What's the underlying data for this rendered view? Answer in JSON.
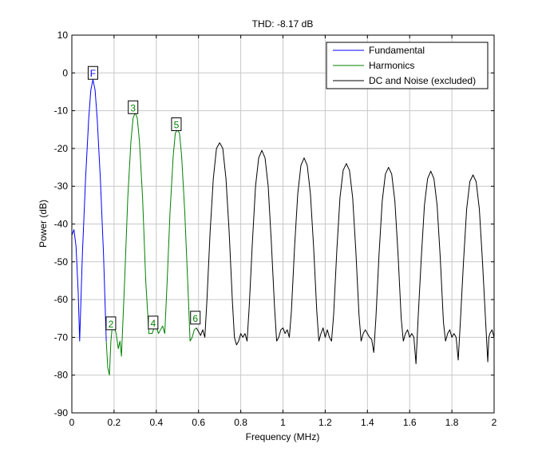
{
  "chart_data": {
    "type": "line",
    "title": "THD:  -8.17 dB",
    "xlabel": "Frequency (MHz)",
    "ylabel": "Power (dB)",
    "xlim": [
      0,
      2
    ],
    "ylim": [
      -90,
      10
    ],
    "x_ticks": [
      "0",
      "0.2",
      "0.4",
      "0.6",
      "0.8",
      "1",
      "1.2",
      "1.4",
      "1.6",
      "1.8",
      "2"
    ],
    "y_ticks": [
      "10",
      "0",
      "-10",
      "-20",
      "-30",
      "-40",
      "-50",
      "-60",
      "-70",
      "-80",
      "-90"
    ],
    "grid": true,
    "legend": {
      "position": "top-right",
      "entries": [
        {
          "name": "Fundamental",
          "color": "#0000ff"
        },
        {
          "name": "Harmonics",
          "color": "#008000"
        },
        {
          "name": "DC and Noise (excluded)",
          "color": "#000000"
        }
      ]
    },
    "series": [
      {
        "name": "Fundamental",
        "color": "#0000ff",
        "points": [
          [
            0.0,
            -43.0
          ],
          [
            0.01,
            -41.5
          ],
          [
            0.02,
            -46.0
          ],
          [
            0.03,
            -58.0
          ],
          [
            0.037,
            -71.0
          ],
          [
            0.05,
            -48.0
          ],
          [
            0.065,
            -28.0
          ],
          [
            0.08,
            -12.0
          ],
          [
            0.09,
            -4.5
          ],
          [
            0.1,
            -1.8
          ],
          [
            0.11,
            -4.5
          ],
          [
            0.12,
            -12.0
          ],
          [
            0.135,
            -28.0
          ],
          [
            0.15,
            -48.0
          ],
          [
            0.163,
            -71.0
          ]
        ]
      },
      {
        "name": "Harmonics",
        "color": "#008000",
        "points": [
          [
            0.163,
            -71.0
          ],
          [
            0.17,
            -78.0
          ],
          [
            0.178,
            -80.0
          ],
          [
            0.185,
            -71.0
          ],
          [
            0.19,
            -68.0
          ],
          [
            0.2,
            -67.0
          ],
          [
            0.21,
            -69.0
          ],
          [
            0.22,
            -73.0
          ],
          [
            0.228,
            -71.0
          ],
          [
            0.235,
            -75.0
          ],
          [
            0.25,
            -55.0
          ],
          [
            0.265,
            -33.0
          ],
          [
            0.28,
            -18.0
          ],
          [
            0.29,
            -12.0
          ],
          [
            0.3,
            -10.5
          ],
          [
            0.31,
            -12.0
          ],
          [
            0.32,
            -18.0
          ],
          [
            0.335,
            -33.0
          ],
          [
            0.35,
            -55.0
          ],
          [
            0.365,
            -69.0
          ],
          [
            0.38,
            -69.0
          ],
          [
            0.39,
            -67.5
          ],
          [
            0.4,
            -67.0
          ],
          [
            0.41,
            -69.0
          ],
          [
            0.42,
            -68.0
          ],
          [
            0.43,
            -67.0
          ],
          [
            0.44,
            -69.0
          ],
          [
            0.45,
            -57.0
          ],
          [
            0.465,
            -37.0
          ],
          [
            0.48,
            -22.0
          ],
          [
            0.49,
            -16.0
          ],
          [
            0.5,
            -15.0
          ],
          [
            0.51,
            -16.0
          ],
          [
            0.52,
            -22.0
          ],
          [
            0.535,
            -37.0
          ],
          [
            0.55,
            -57.0
          ],
          [
            0.56,
            -71.0
          ],
          [
            0.57,
            -70.0
          ],
          [
            0.58,
            -68.0
          ],
          [
            0.59,
            -67.5
          ]
        ]
      },
      {
        "name": "DC and Noise (excluded)",
        "color": "#000000",
        "points": [
          [
            0.59,
            -67.5
          ],
          [
            0.6,
            -68.5
          ],
          [
            0.61,
            -69.5
          ],
          [
            0.62,
            -68.0
          ],
          [
            0.63,
            -70.0
          ],
          [
            0.64,
            -60.0
          ],
          [
            0.655,
            -42.0
          ],
          [
            0.67,
            -28.0
          ],
          [
            0.685,
            -20.0
          ],
          [
            0.7,
            -18.5
          ],
          [
            0.715,
            -20.0
          ],
          [
            0.73,
            -28.0
          ],
          [
            0.745,
            -42.0
          ],
          [
            0.76,
            -60.0
          ],
          [
            0.77,
            -70.0
          ],
          [
            0.78,
            -72.0
          ],
          [
            0.79,
            -71.0
          ],
          [
            0.8,
            -69.0
          ],
          [
            0.81,
            -70.0
          ],
          [
            0.82,
            -69.0
          ],
          [
            0.83,
            -71.0
          ],
          [
            0.84,
            -62.0
          ],
          [
            0.855,
            -45.0
          ],
          [
            0.87,
            -30.0
          ],
          [
            0.885,
            -22.5
          ],
          [
            0.9,
            -20.5
          ],
          [
            0.915,
            -22.5
          ],
          [
            0.93,
            -30.0
          ],
          [
            0.945,
            -45.0
          ],
          [
            0.96,
            -62.0
          ],
          [
            0.97,
            -71.0
          ],
          [
            0.98,
            -70.0
          ],
          [
            0.99,
            -68.0
          ],
          [
            1.0,
            -67.5
          ],
          [
            1.01,
            -69.0
          ],
          [
            1.02,
            -68.0
          ],
          [
            1.03,
            -70.0
          ],
          [
            1.04,
            -63.0
          ],
          [
            1.055,
            -46.0
          ],
          [
            1.07,
            -32.0
          ],
          [
            1.085,
            -24.5
          ],
          [
            1.1,
            -22.5
          ],
          [
            1.115,
            -24.5
          ],
          [
            1.13,
            -32.0
          ],
          [
            1.145,
            -46.0
          ],
          [
            1.16,
            -63.0
          ],
          [
            1.17,
            -71.0
          ],
          [
            1.18,
            -69.0
          ],
          [
            1.19,
            -67.5
          ],
          [
            1.2,
            -70.0
          ],
          [
            1.21,
            -68.0
          ],
          [
            1.22,
            -70.0
          ],
          [
            1.23,
            -71.0
          ],
          [
            1.24,
            -64.0
          ],
          [
            1.255,
            -47.0
          ],
          [
            1.27,
            -33.0
          ],
          [
            1.285,
            -25.8
          ],
          [
            1.3,
            -24.0
          ],
          [
            1.315,
            -25.8
          ],
          [
            1.33,
            -33.0
          ],
          [
            1.345,
            -47.0
          ],
          [
            1.36,
            -64.0
          ],
          [
            1.37,
            -71.0
          ],
          [
            1.38,
            -69.0
          ],
          [
            1.39,
            -68.0
          ],
          [
            1.4,
            -69.0
          ],
          [
            1.41,
            -70.0
          ],
          [
            1.42,
            -70.5
          ],
          [
            1.43,
            -74.0
          ],
          [
            1.44,
            -65.0
          ],
          [
            1.455,
            -48.0
          ],
          [
            1.47,
            -34.0
          ],
          [
            1.485,
            -26.8
          ],
          [
            1.5,
            -25.0
          ],
          [
            1.515,
            -26.8
          ],
          [
            1.53,
            -34.0
          ],
          [
            1.545,
            -48.0
          ],
          [
            1.56,
            -65.0
          ],
          [
            1.57,
            -71.0
          ],
          [
            1.58,
            -69.0
          ],
          [
            1.59,
            -68.0
          ],
          [
            1.6,
            -70.0
          ],
          [
            1.61,
            -69.0
          ],
          [
            1.62,
            -70.0
          ],
          [
            1.63,
            -77.0
          ],
          [
            1.64,
            -65.0
          ],
          [
            1.655,
            -49.0
          ],
          [
            1.67,
            -35.0
          ],
          [
            1.685,
            -28.0
          ],
          [
            1.7,
            -26.0
          ],
          [
            1.715,
            -28.0
          ],
          [
            1.73,
            -35.0
          ],
          [
            1.745,
            -49.0
          ],
          [
            1.76,
            -66.0
          ],
          [
            1.77,
            -71.0
          ],
          [
            1.78,
            -69.0
          ],
          [
            1.79,
            -68.0
          ],
          [
            1.8,
            -70.0
          ],
          [
            1.81,
            -69.0
          ],
          [
            1.82,
            -70.0
          ],
          [
            1.83,
            -76.0
          ],
          [
            1.84,
            -66.0
          ],
          [
            1.855,
            -50.0
          ],
          [
            1.87,
            -36.0
          ],
          [
            1.885,
            -28.8
          ],
          [
            1.9,
            -27.0
          ],
          [
            1.915,
            -28.8
          ],
          [
            1.93,
            -36.0
          ],
          [
            1.945,
            -50.0
          ],
          [
            1.96,
            -66.0
          ],
          [
            1.97,
            -76.5
          ],
          [
            1.975,
            -70.0
          ],
          [
            1.98,
            -69.0
          ],
          [
            1.99,
            -68.0
          ],
          [
            2.0,
            -70.0
          ]
        ]
      }
    ],
    "annotations": [
      {
        "text": "F",
        "x": 0.1,
        "y": -0.2,
        "color": "#0000ff"
      },
      {
        "text": "2",
        "x": 0.185,
        "y": -66.5,
        "color": "#008000"
      },
      {
        "text": "3",
        "x": 0.29,
        "y": -9.3,
        "color": "#008000"
      },
      {
        "text": "4",
        "x": 0.385,
        "y": -66.3,
        "color": "#008000"
      },
      {
        "text": "5",
        "x": 0.495,
        "y": -13.8,
        "color": "#008000"
      },
      {
        "text": "6",
        "x": 0.585,
        "y": -65.0,
        "color": "#008000"
      }
    ]
  }
}
